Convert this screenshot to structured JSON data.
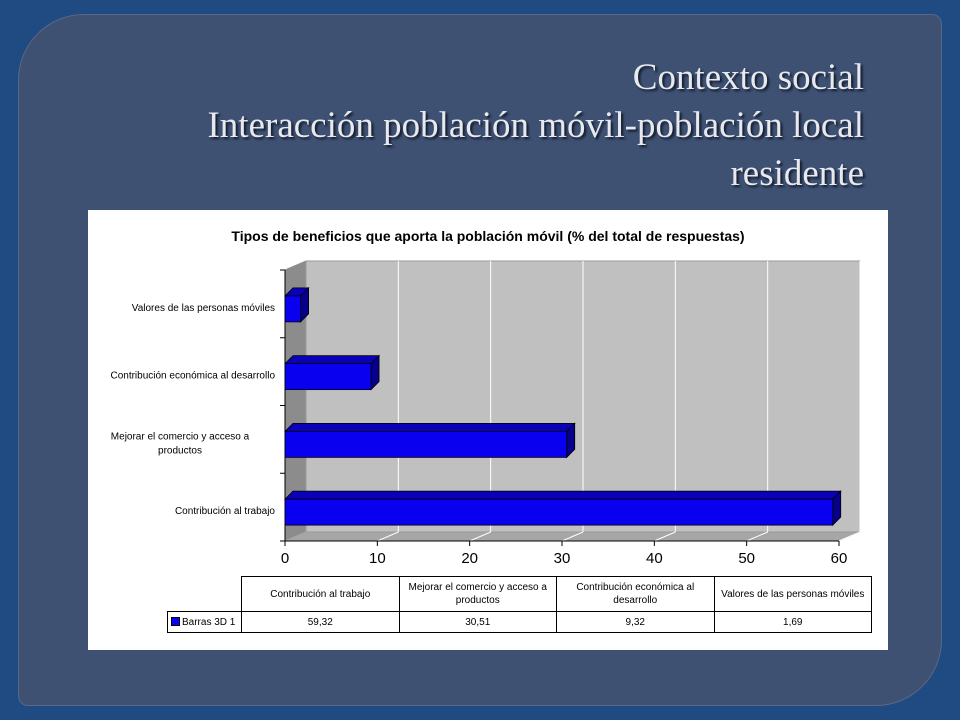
{
  "slide": {
    "title_line1": "Contexto social",
    "title_line2": "Interacción población móvil-población local",
    "title_line3": "residente",
    "background_color": "#1f4a82",
    "panel_color": "#3e5173"
  },
  "chart_data": {
    "type": "bar",
    "orientation": "horizontal",
    "style": "3d",
    "title": "Tipos de beneficios que aporta la población móvil (% del total de respuestas)",
    "categories": [
      "Contribución al trabajo",
      "Mejorar el comercio y acceso a productos",
      "Contribución económica al desarrollo",
      "Valores de las personas móviles"
    ],
    "category_labels_axis": [
      [
        "Contribución al trabajo"
      ],
      [
        "Mejorar el comercio y acceso a",
        "productos"
      ],
      [
        "Contribución económica al desarrollo"
      ],
      [
        "Valores de las personas móviles"
      ]
    ],
    "series": [
      {
        "name": "Barras 3D 1",
        "values": [
          59.32,
          30.51,
          9.32,
          1.69
        ],
        "color": "#0a00f0"
      }
    ],
    "xlim": [
      0,
      60
    ],
    "x_ticks": [
      "0",
      "10",
      "20",
      "30",
      "40",
      "50",
      "60"
    ],
    "grid": true,
    "plot_background": "#c0c0c0",
    "data_table": {
      "headers": [
        [
          "Contribución al trabajo"
        ],
        [
          "Mejorar el comercio y acceso a",
          "productos"
        ],
        [
          "Contribución económica al",
          "desarrollo"
        ],
        [
          "Valores de las personas móviles"
        ]
      ],
      "series_label": "Barras 3D 1",
      "values_text": [
        "59,32",
        "30,51",
        "9,32",
        "1,69"
      ]
    }
  }
}
